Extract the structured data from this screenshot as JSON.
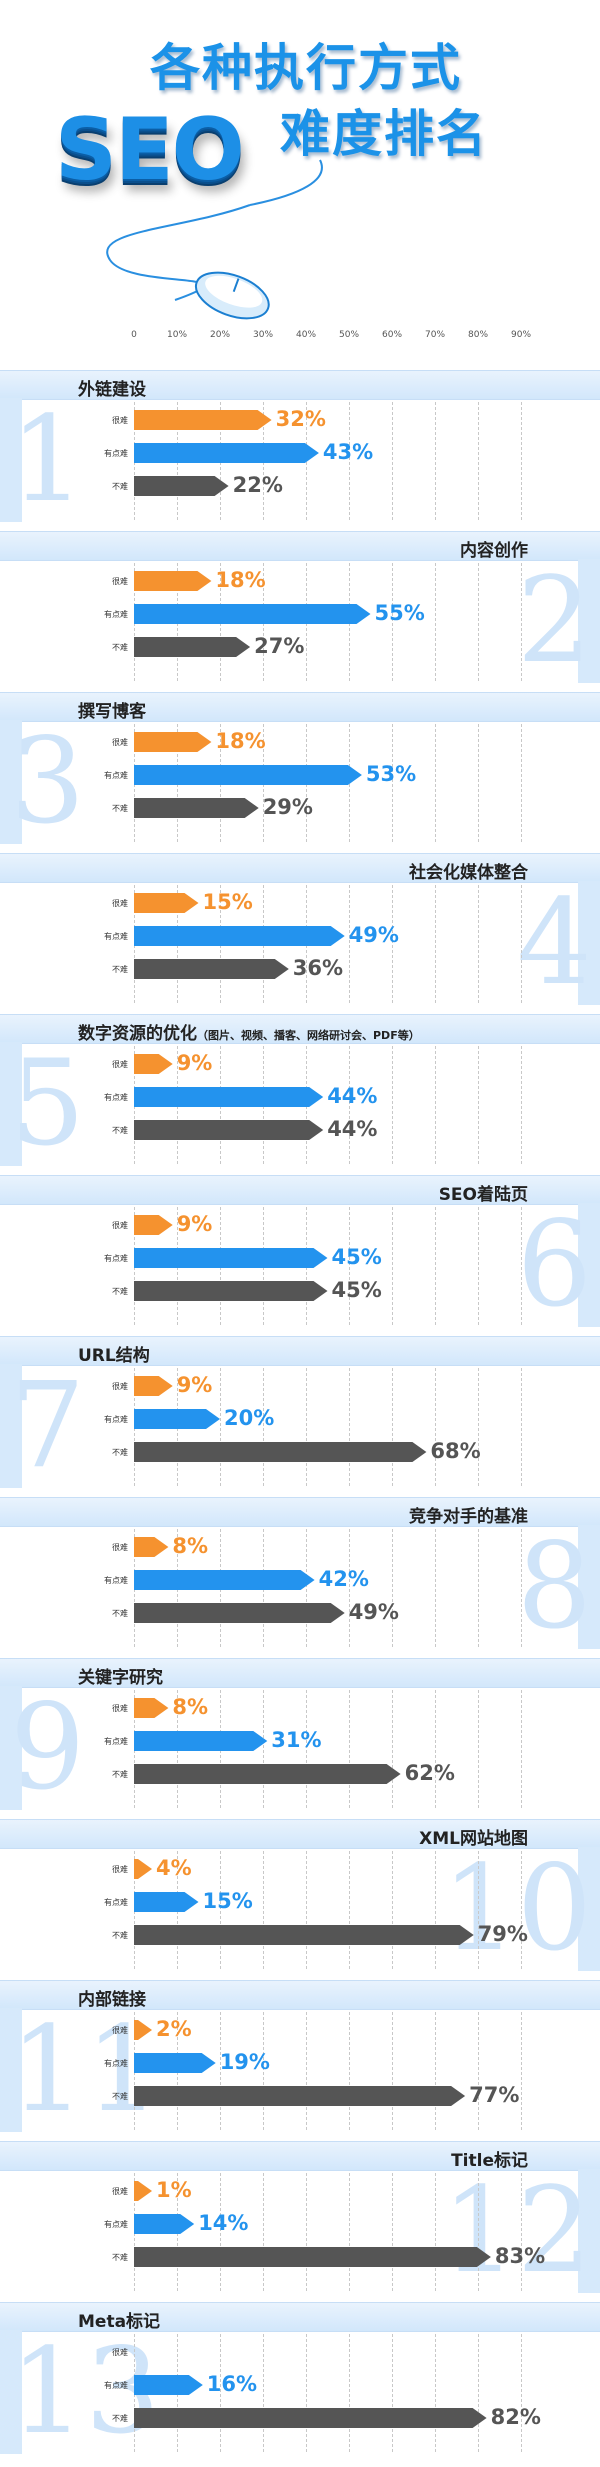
{
  "header": {
    "title_line1": "各种执行方式",
    "title_line2": "难度排名",
    "logo_text": "SEO"
  },
  "colors": {
    "hard": "#f5922f",
    "somewhat": "#2393ee",
    "easy": "#555555"
  },
  "chart_data": {
    "type": "bar",
    "orientation": "horizontal",
    "xlim": [
      0,
      90
    ],
    "x_ticks": [
      "0",
      "10%",
      "20%",
      "30%",
      "40%",
      "50%",
      "60%",
      "70%",
      "80%",
      "90%"
    ],
    "row_labels": [
      "很难",
      "有点难",
      "不难"
    ],
    "grid": true,
    "sections": [
      {
        "number": "1",
        "title": "外链建设",
        "note": "",
        "values": [
          32,
          43,
          22
        ]
      },
      {
        "number": "2",
        "title": "内容创作",
        "note": "",
        "values": [
          18,
          55,
          27
        ]
      },
      {
        "number": "3",
        "title": "撰写博客",
        "note": "",
        "values": [
          18,
          53,
          29
        ]
      },
      {
        "number": "4",
        "title": "社会化媒体整合",
        "note": "",
        "values": [
          15,
          49,
          36
        ]
      },
      {
        "number": "5",
        "title": "数字资源的优化",
        "note": "（图片、视频、播客、网络研讨会、PDF等）",
        "values": [
          9,
          44,
          44
        ]
      },
      {
        "number": "6",
        "title": "SEO着陆页",
        "note": "",
        "values": [
          9,
          45,
          45
        ]
      },
      {
        "number": "7",
        "title": "URL结构",
        "note": "",
        "values": [
          9,
          20,
          68
        ]
      },
      {
        "number": "8",
        "title": "竞争对手的基准",
        "note": "",
        "values": [
          8,
          42,
          49
        ]
      },
      {
        "number": "9",
        "title": "关键字研究",
        "note": "",
        "values": [
          8,
          31,
          62
        ]
      },
      {
        "number": "10",
        "title": "XML网站地图",
        "note": "",
        "values": [
          4,
          15,
          79
        ]
      },
      {
        "number": "11",
        "title": "内部链接",
        "note": "",
        "values": [
          2,
          19,
          77
        ]
      },
      {
        "number": "12",
        "title": "Title标记",
        "note": "",
        "values": [
          1,
          14,
          83
        ]
      },
      {
        "number": "13",
        "title": "Meta标记",
        "note": "",
        "values": [
          null,
          16,
          82
        ]
      }
    ]
  }
}
